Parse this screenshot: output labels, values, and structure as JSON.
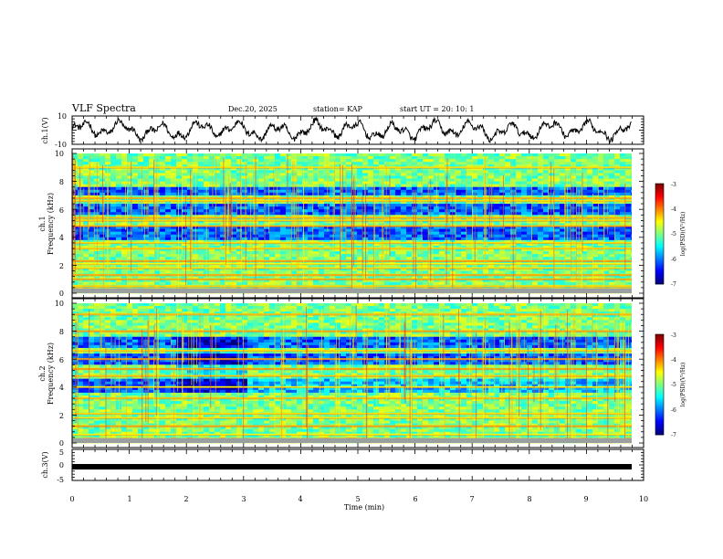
{
  "header": {
    "title": "VLF Spectra",
    "date": "Dec.20, 2025",
    "station": "station= KAP",
    "start": "start  UT  =   20: 10: 1"
  },
  "chart_data": [
    {
      "type": "line",
      "name": "ch1-waveform",
      "ylabel": "ch.1(V)",
      "ylim": [
        -10,
        10
      ],
      "yticks": [
        "10",
        "-10"
      ],
      "xlim": [
        0,
        10
      ]
    },
    {
      "type": "heatmap",
      "name": "ch1-spectrogram",
      "ylabel_top": "ch.1",
      "ylabel": "Frequency  (kHz)",
      "ylim": [
        0,
        10
      ],
      "yticks": [
        "0",
        "2",
        "4",
        "6",
        "8",
        "10"
      ],
      "xlim": [
        0,
        9.85
      ],
      "colorbar": {
        "label": "log(PSD)(V²/Hz)",
        "min": -7,
        "max": -3,
        "ticks": [
          "-3",
          "-4",
          "-5",
          "-6",
          "-7"
        ]
      },
      "bands_khz": [
        0.5,
        1.0,
        1.3,
        1.8,
        2.1,
        2.3,
        3.2,
        3.6,
        4.8,
        5.2,
        5.4,
        6.6,
        6.8,
        9.0
      ],
      "quiet_bands_khz": [
        [
          3.8,
          4.8
        ],
        [
          5.6,
          6.4
        ],
        [
          7.0,
          7.6
        ]
      ]
    },
    {
      "type": "heatmap",
      "name": "ch2-spectrogram",
      "ylabel_top": "ch.2",
      "ylabel": "Frequency  (kHz)",
      "ylim": [
        0,
        10
      ],
      "yticks": [
        "0",
        "2",
        "4",
        "6",
        "8",
        "10"
      ],
      "xlim": [
        0,
        9.85
      ],
      "colorbar": {
        "label": "log(PSD)(V²/Hz)",
        "min": -7,
        "max": -3,
        "ticks": [
          "-3",
          "-4",
          "-5",
          "-6",
          "-7"
        ]
      },
      "bands_khz": [
        0.6,
        1.2,
        1.8,
        2.1,
        3.2,
        4.0,
        4.8,
        5.3,
        6.0,
        6.6,
        8.0,
        9.2
      ],
      "quiet_bands_khz": [
        [
          3.5,
          4.5
        ],
        [
          5.6,
          6.4
        ],
        [
          6.8,
          7.6
        ]
      ],
      "step_change_min": [
        1.8,
        3.0
      ]
    },
    {
      "type": "line",
      "name": "ch3-signal",
      "ylabel": "ch.3(V)",
      "ylim": [
        -5,
        5
      ],
      "yticks": [
        "5",
        "0",
        "-5"
      ],
      "level": -0.3,
      "xlim": [
        0,
        9.85
      ]
    }
  ],
  "xaxis": {
    "label": "Time  (min)",
    "ticks": [
      "0",
      "1",
      "2",
      "3",
      "4",
      "5",
      "6",
      "7",
      "8",
      "9",
      "10"
    ],
    "range": [
      0,
      10
    ]
  }
}
